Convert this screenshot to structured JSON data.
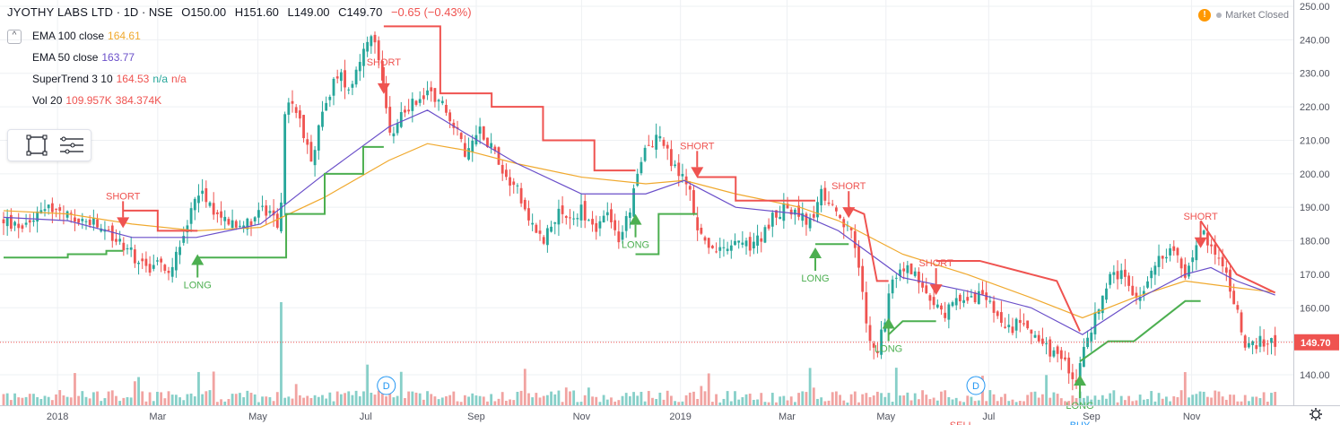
{
  "header": {
    "symbol": "JYOTHY LABS LTD",
    "interval": "1D",
    "exchange": "NSE",
    "open": "O150.00",
    "high": "H151.60",
    "low": "L149.00",
    "close": "C149.70",
    "change": "−0.65 (−0.43%)"
  },
  "market_status": {
    "warning_glyph": "!",
    "text": "Market Closed"
  },
  "indicators": [
    {
      "label": "EMA 100 close",
      "values": [
        "164.61"
      ],
      "colors": [
        "#f0a92e"
      ]
    },
    {
      "label": "EMA 50 close",
      "values": [
        "163.77"
      ],
      "colors": [
        "#6a4fc9"
      ]
    },
    {
      "label": "SuperTrend 3 10",
      "values": [
        "164.53",
        "n/a",
        "n/a"
      ],
      "colors": [
        "#ef5350",
        "#26a69a",
        "#ef5350"
      ]
    },
    {
      "label": "Vol 20",
      "values": [
        "109.957K",
        "384.374K"
      ],
      "colors": [
        "#ef5350",
        "#ef5350"
      ]
    }
  ],
  "toolbox": {
    "icons": [
      "rectangle-tool-icon",
      "lines-tool-icon"
    ]
  },
  "colors": {
    "up": "#26a69a",
    "down": "#ef5350",
    "ema100": "#f0a92e",
    "ema50": "#6a4fc9",
    "st_red": "#ef5350",
    "st_green": "#4caf50",
    "price_line": "#ef5350",
    "grid": "#eef0f3"
  },
  "chart_data": {
    "type": "candlestick",
    "title": "JYOTHY LABS LTD · 1D · NSE",
    "x_tick_labels": [
      "2018",
      "Mar",
      "May",
      "Jul",
      "Sep",
      "Nov",
      "2019",
      "Mar",
      "May",
      "Jul",
      "Sep",
      "Nov"
    ],
    "y_tick_labels": [
      "250.00",
      "240.00",
      "230.00",
      "220.00",
      "210.00",
      "200.00",
      "190.00",
      "180.00",
      "170.00",
      "160.00",
      "150.00",
      "140.00"
    ],
    "ylim": [
      137,
      250
    ],
    "last_price_label": "149.70",
    "last_price": 149.7,
    "signals": [
      {
        "type": "SHORT",
        "t": 0.093,
        "price": 187
      },
      {
        "type": "LONG",
        "t": 0.151,
        "price": 176
      },
      {
        "type": "SHORT",
        "t": 0.296,
        "price": 227
      },
      {
        "type": "LONG",
        "t": 0.492,
        "price": 188
      },
      {
        "type": "SHORT",
        "t": 0.54,
        "price": 202
      },
      {
        "type": "LONG",
        "t": 0.632,
        "price": 178
      },
      {
        "type": "SHORT",
        "t": 0.658,
        "price": 190
      },
      {
        "type": "LONG",
        "t": 0.689,
        "price": 157
      },
      {
        "type": "SHORT",
        "t": 0.726,
        "price": 167
      },
      {
        "type": "LONG",
        "t": 0.838,
        "price": 140
      },
      {
        "type": "SHORT",
        "t": 0.932,
        "price": 181
      }
    ],
    "dividend_markers": [
      {
        "label": "D",
        "t": 0.298
      },
      {
        "label": "D",
        "t": 0.757
      }
    ],
    "bottom_cut_labels": [
      {
        "label": "SELL",
        "t": 0.746
      },
      {
        "label": "BUY",
        "t": 0.838
      }
    ],
    "price_path": [
      [
        0.0,
        186
      ],
      [
        0.01,
        184
      ],
      [
        0.02,
        186
      ],
      [
        0.03,
        191
      ],
      [
        0.04,
        189
      ],
      [
        0.05,
        187
      ],
      [
        0.06,
        186
      ],
      [
        0.07,
        185
      ],
      [
        0.08,
        182
      ],
      [
        0.09,
        180
      ],
      [
        0.1,
        176
      ],
      [
        0.11,
        172
      ],
      [
        0.12,
        173
      ],
      [
        0.13,
        172
      ],
      [
        0.14,
        180
      ],
      [
        0.15,
        196
      ],
      [
        0.16,
        191
      ],
      [
        0.17,
        187
      ],
      [
        0.18,
        186
      ],
      [
        0.19,
        185
      ],
      [
        0.2,
        190
      ],
      [
        0.21,
        186
      ],
      [
        0.215,
        184
      ],
      [
        0.22,
        224
      ],
      [
        0.23,
        216
      ],
      [
        0.24,
        205
      ],
      [
        0.25,
        220
      ],
      [
        0.26,
        230
      ],
      [
        0.27,
        226
      ],
      [
        0.28,
        238
      ],
      [
        0.29,
        240
      ],
      [
        0.295,
        228
      ],
      [
        0.3,
        210
      ],
      [
        0.31,
        218
      ],
      [
        0.32,
        222
      ],
      [
        0.33,
        224
      ],
      [
        0.34,
        223
      ],
      [
        0.35,
        215
      ],
      [
        0.36,
        205
      ],
      [
        0.37,
        214
      ],
      [
        0.38,
        208
      ],
      [
        0.39,
        200
      ],
      [
        0.4,
        196
      ],
      [
        0.41,
        186
      ],
      [
        0.42,
        180
      ],
      [
        0.43,
        188
      ],
      [
        0.44,
        186
      ],
      [
        0.45,
        189
      ],
      [
        0.46,
        184
      ],
      [
        0.47,
        187
      ],
      [
        0.48,
        180
      ],
      [
        0.49,
        193
      ],
      [
        0.5,
        208
      ],
      [
        0.51,
        212
      ],
      [
        0.52,
        203
      ],
      [
        0.53,
        198
      ],
      [
        0.535,
        195
      ],
      [
        0.54,
        183
      ],
      [
        0.55,
        178
      ],
      [
        0.56,
        176
      ],
      [
        0.57,
        180
      ],
      [
        0.58,
        178
      ],
      [
        0.59,
        181
      ],
      [
        0.6,
        188
      ],
      [
        0.61,
        190
      ],
      [
        0.62,
        188
      ],
      [
        0.63,
        184
      ],
      [
        0.635,
        196
      ],
      [
        0.64,
        192
      ],
      [
        0.65,
        186
      ],
      [
        0.66,
        182
      ],
      [
        0.665,
        175
      ],
      [
        0.67,
        160
      ],
      [
        0.675,
        148
      ],
      [
        0.68,
        145
      ],
      [
        0.69,
        165
      ],
      [
        0.7,
        172
      ],
      [
        0.71,
        170
      ],
      [
        0.72,
        164
      ],
      [
        0.73,
        158
      ],
      [
        0.74,
        161
      ],
      [
        0.75,
        164
      ],
      [
        0.76,
        163
      ],
      [
        0.77,
        160
      ],
      [
        0.78,
        152
      ],
      [
        0.79,
        156
      ],
      [
        0.8,
        154
      ],
      [
        0.81,
        148
      ],
      [
        0.82,
        146
      ],
      [
        0.83,
        142
      ],
      [
        0.835,
        139
      ],
      [
        0.84,
        145
      ],
      [
        0.85,
        158
      ],
      [
        0.86,
        168
      ],
      [
        0.87,
        170
      ],
      [
        0.88,
        162
      ],
      [
        0.89,
        166
      ],
      [
        0.9,
        176
      ],
      [
        0.91,
        178
      ],
      [
        0.92,
        170
      ],
      [
        0.93,
        182
      ],
      [
        0.94,
        180
      ],
      [
        0.95,
        172
      ],
      [
        0.96,
        160
      ],
      [
        0.965,
        150
      ],
      [
        0.97,
        148
      ],
      [
        0.98,
        150
      ],
      [
        0.99,
        149.7
      ]
    ],
    "ema100_path": [
      [
        0.0,
        189
      ],
      [
        0.05,
        188
      ],
      [
        0.1,
        185
      ],
      [
        0.15,
        183
      ],
      [
        0.2,
        184
      ],
      [
        0.25,
        193
      ],
      [
        0.3,
        204
      ],
      [
        0.33,
        209
      ],
      [
        0.36,
        207
      ],
      [
        0.4,
        203
      ],
      [
        0.45,
        199
      ],
      [
        0.5,
        197
      ],
      [
        0.53,
        198
      ],
      [
        0.57,
        194
      ],
      [
        0.62,
        190
      ],
      [
        0.65,
        186
      ],
      [
        0.7,
        176
      ],
      [
        0.75,
        170
      ],
      [
        0.8,
        163
      ],
      [
        0.84,
        157
      ],
      [
        0.88,
        163
      ],
      [
        0.92,
        168
      ],
      [
        0.96,
        166
      ],
      [
        0.99,
        164.6
      ]
    ],
    "ema50_path": [
      [
        0.0,
        187
      ],
      [
        0.05,
        186
      ],
      [
        0.1,
        181
      ],
      [
        0.15,
        181
      ],
      [
        0.2,
        185
      ],
      [
        0.25,
        200
      ],
      [
        0.3,
        214
      ],
      [
        0.33,
        219
      ],
      [
        0.36,
        212
      ],
      [
        0.4,
        203
      ],
      [
        0.45,
        194
      ],
      [
        0.5,
        194
      ],
      [
        0.53,
        198
      ],
      [
        0.57,
        190
      ],
      [
        0.62,
        188
      ],
      [
        0.65,
        183
      ],
      [
        0.7,
        169
      ],
      [
        0.75,
        165
      ],
      [
        0.8,
        160
      ],
      [
        0.84,
        152
      ],
      [
        0.88,
        162
      ],
      [
        0.92,
        170
      ],
      [
        0.94,
        172
      ],
      [
        0.96,
        168
      ],
      [
        0.99,
        163.8
      ]
    ],
    "supertrend_segments": [
      {
        "color": "green",
        "points": [
          [
            0.0,
            175
          ],
          [
            0.05,
            175
          ],
          [
            0.05,
            176
          ],
          [
            0.08,
            176
          ],
          [
            0.08,
            177
          ],
          [
            0.093,
            177
          ]
        ]
      },
      {
        "color": "red",
        "points": [
          [
            0.093,
            189
          ],
          [
            0.12,
            189
          ],
          [
            0.12,
            183
          ],
          [
            0.151,
            183
          ]
        ]
      },
      {
        "color": "green",
        "points": [
          [
            0.151,
            175
          ],
          [
            0.22,
            175
          ],
          [
            0.22,
            188
          ],
          [
            0.25,
            188
          ],
          [
            0.25,
            200
          ],
          [
            0.28,
            200
          ],
          [
            0.28,
            208
          ],
          [
            0.296,
            208
          ]
        ]
      },
      {
        "color": "red",
        "points": [
          [
            0.296,
            244
          ],
          [
            0.34,
            244
          ],
          [
            0.34,
            224
          ],
          [
            0.38,
            224
          ],
          [
            0.38,
            220
          ],
          [
            0.42,
            220
          ],
          [
            0.42,
            210
          ],
          [
            0.46,
            210
          ],
          [
            0.46,
            201
          ],
          [
            0.492,
            201
          ]
        ]
      },
      {
        "color": "green",
        "points": [
          [
            0.492,
            176
          ],
          [
            0.51,
            176
          ],
          [
            0.51,
            188
          ],
          [
            0.54,
            188
          ]
        ]
      },
      {
        "color": "red",
        "points": [
          [
            0.54,
            199
          ],
          [
            0.57,
            199
          ],
          [
            0.57,
            192
          ],
          [
            0.632,
            192
          ]
        ]
      },
      {
        "color": "green",
        "points": [
          [
            0.632,
            179
          ],
          [
            0.658,
            179
          ]
        ]
      },
      {
        "color": "red",
        "points": [
          [
            0.658,
            190
          ],
          [
            0.67,
            188
          ],
          [
            0.68,
            168
          ],
          [
            0.689,
            168
          ]
        ]
      },
      {
        "color": "green",
        "points": [
          [
            0.689,
            152
          ],
          [
            0.7,
            156
          ],
          [
            0.726,
            156
          ]
        ]
      },
      {
        "color": "red",
        "points": [
          [
            0.726,
            174
          ],
          [
            0.76,
            174
          ],
          [
            0.8,
            170
          ],
          [
            0.82,
            168
          ],
          [
            0.838,
            153
          ]
        ]
      },
      {
        "color": "green",
        "points": [
          [
            0.838,
            144
          ],
          [
            0.86,
            150
          ],
          [
            0.88,
            150
          ],
          [
            0.9,
            156
          ],
          [
            0.92,
            162
          ],
          [
            0.932,
            162
          ]
        ]
      },
      {
        "color": "red",
        "points": [
          [
            0.932,
            186
          ],
          [
            0.96,
            170
          ],
          [
            0.99,
            164.5
          ]
        ]
      }
    ]
  }
}
